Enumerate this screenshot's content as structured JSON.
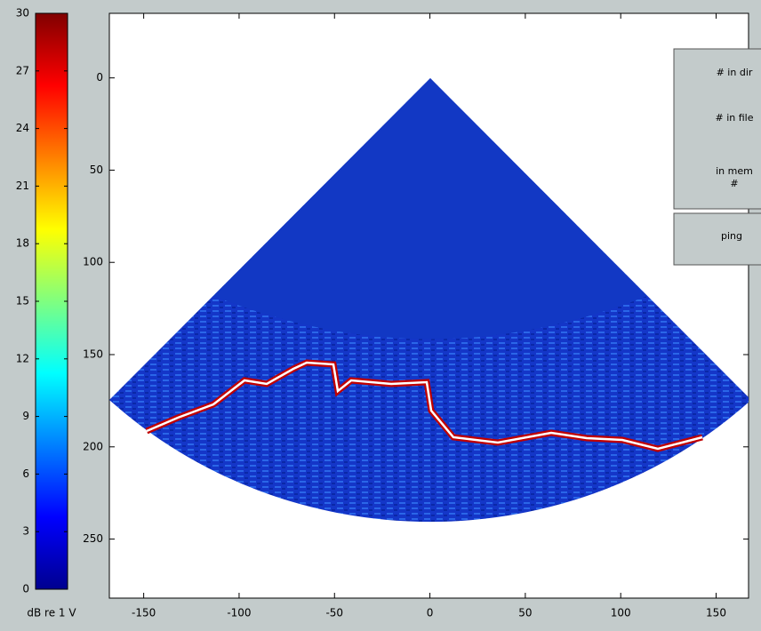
{
  "colorbar": {
    "clim": [
      0,
      30
    ],
    "ticks": [
      0,
      3,
      6,
      9,
      12,
      15,
      18,
      21,
      24,
      27,
      30
    ],
    "label": "dB re 1 V"
  },
  "axes": {
    "xlim": [
      -168,
      167
    ],
    "ylim": [
      -35,
      282
    ],
    "y_reversed": true,
    "xticks": [
      -150,
      -100,
      -50,
      0,
      50,
      100,
      150
    ],
    "yticks": [
      0,
      50,
      100,
      150,
      200,
      250
    ]
  },
  "buttons": {
    "panel": [
      {
        "lines": [
          "# in dir"
        ]
      },
      {
        "lines": [
          "# in file"
        ]
      },
      {
        "lines": [
          "in mem",
          "#"
        ]
      }
    ],
    "ping": {
      "lines": [
        "ping"
      ]
    }
  }
}
